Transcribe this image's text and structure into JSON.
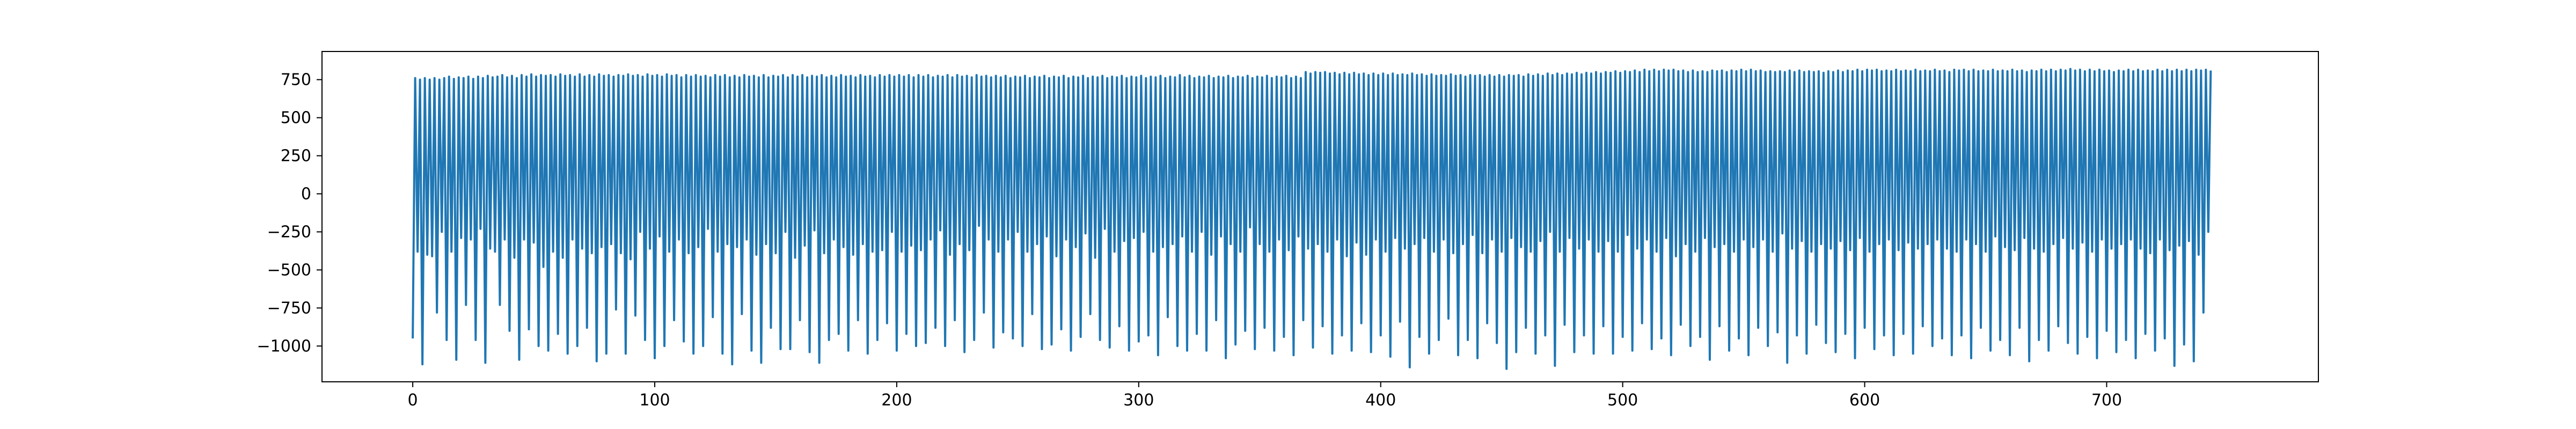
{
  "chart_data": {
    "type": "line",
    "title": "",
    "xlabel": "",
    "ylabel": "",
    "xlim": [
      -37.5,
      787.5
    ],
    "ylim": [
      -1235,
      935
    ],
    "xticks": [
      0,
      100,
      200,
      300,
      400,
      500,
      600,
      700
    ],
    "yticks": [
      -1000,
      -750,
      -500,
      -250,
      0,
      250,
      500,
      750
    ],
    "xtick_labels": [
      "0",
      "100",
      "200",
      "300",
      "400",
      "500",
      "600",
      "700"
    ],
    "ytick_labels": [
      "−1000",
      "−750",
      "−500",
      "−250",
      "0",
      "250",
      "500",
      "750"
    ],
    "grid": false,
    "legend": false,
    "series_color": "#1f77b4",
    "series": [
      {
        "x_start": 0,
        "x_step": 1,
        "values": [
          -950,
          760,
          -380,
          750,
          -1120,
          760,
          -400,
          750,
          -410,
          760,
          -780,
          750,
          -250,
          760,
          -960,
          770,
          -380,
          755,
          -1090,
          765,
          -290,
          760,
          -730,
          770,
          -300,
          755,
          -960,
          770,
          -230,
          760,
          -1110,
          775,
          -360,
          765,
          -380,
          770,
          -730,
          780,
          -300,
          765,
          -900,
          775,
          -420,
          760,
          -1090,
          780,
          -300,
          770,
          -890,
          785,
          -320,
          770,
          -1000,
          780,
          -480,
          775,
          -1030,
          780,
          -380,
          770,
          -920,
          785,
          -420,
          775,
          -1050,
          780,
          -300,
          770,
          -1000,
          785,
          -360,
          770,
          -880,
          780,
          -390,
          770,
          -1100,
          785,
          -350,
          775,
          -1050,
          780,
          -330,
          770,
          -760,
          780,
          -390,
          775,
          -1050,
          785,
          -430,
          775,
          -800,
          780,
          -250,
          770,
          -960,
          785,
          -360,
          775,
          -1080,
          780,
          -280,
          770,
          -1000,
          785,
          -380,
          775,
          -830,
          780,
          -300,
          765,
          -970,
          780,
          -390,
          770,
          -1050,
          780,
          -350,
          770,
          -1000,
          775,
          -230,
          765,
          -810,
          780,
          -380,
          770,
          -1050,
          780,
          -330,
          765,
          -1120,
          775,
          -350,
          765,
          -790,
          780,
          -300,
          770,
          -1030,
          775,
          -400,
          765,
          -1110,
          780,
          -330,
          765,
          -880,
          775,
          -390,
          770,
          -1020,
          780,
          -250,
          765,
          -1020,
          780,
          -420,
          770,
          -830,
          780,
          -340,
          765,
          -1040,
          775,
          -240,
          770,
          -1110,
          780,
          -390,
          765,
          -960,
          775,
          -300,
          765,
          -920,
          780,
          -350,
          770,
          -1030,
          775,
          -400,
          765,
          -830,
          780,
          -330,
          770,
          -1050,
          775,
          -380,
          765,
          -960,
          780,
          -370,
          770,
          -850,
          780,
          -250,
          770,
          -1030,
          780,
          -380,
          770,
          -920,
          780,
          -340,
          765,
          -1000,
          780,
          -370,
          770,
          -980,
          780,
          -300,
          765,
          -880,
          775,
          -240,
          770,
          -1000,
          780,
          -400,
          765,
          -830,
          780,
          -330,
          770,
          -1040,
          775,
          -370,
          765,
          -960,
          780,
          -210,
          770,
          -780,
          775,
          -300,
          765,
          -1010,
          775,
          -380,
          765,
          -910,
          775,
          -300,
          760,
          -950,
          770,
          -250,
          765,
          -1000,
          775,
          -380,
          760,
          -790,
          770,
          -330,
          765,
          -1020,
          775,
          -280,
          760,
          -990,
          770,
          -410,
          765,
          -890,
          775,
          -300,
          760,
          -1030,
          770,
          -350,
          765,
          -940,
          775,
          -260,
          760,
          -790,
          770,
          -420,
          765,
          -960,
          775,
          -230,
          760,
          -1010,
          770,
          -380,
          765,
          -870,
          775,
          -310,
          760,
          -1030,
          770,
          -290,
          765,
          -970,
          775,
          -250,
          760,
          -930,
          770,
          -380,
          765,
          -1060,
          775,
          -350,
          760,
          -810,
          770,
          -330,
          765,
          -1000,
          780,
          -280,
          765,
          -1030,
          775,
          -380,
          760,
          -920,
          770,
          -250,
          765,
          -1030,
          775,
          -400,
          760,
          -830,
          770,
          -280,
          765,
          -1080,
          775,
          -330,
          760,
          -990,
          770,
          -380,
          765,
          -900,
          775,
          -220,
          760,
          -1020,
          770,
          -330,
          765,
          -880,
          775,
          -380,
          760,
          -1030,
          770,
          -300,
          765,
          -940,
          775,
          -370,
          760,
          -1060,
          770,
          -280,
          760,
          -830,
          800,
          -360,
          790,
          -1010,
          800,
          -330,
          795,
          -870,
          800,
          -380,
          790,
          -1050,
          795,
          -300,
          785,
          -930,
          795,
          -410,
          785,
          -1030,
          795,
          -320,
          785,
          -850,
          790,
          -400,
          780,
          -1040,
          790,
          -300,
          780,
          -930,
          790,
          -380,
          780,
          -1070,
          790,
          -290,
          780,
          -840,
          785,
          -360,
          780,
          -1140,
          790,
          -330,
          780,
          -940,
          785,
          -290,
          775,
          -1050,
          785,
          -380,
          775,
          -960,
          780,
          -300,
          775,
          -820,
          785,
          -390,
          775,
          -1060,
          780,
          -330,
          770,
          -960,
          780,
          -270,
          775,
          -1080,
          780,
          -390,
          770,
          -850,
          780,
          -300,
          770,
          -980,
          780,
          -380,
          770,
          -1150,
          780,
          -290,
          775,
          -1040,
          780,
          -350,
          770,
          -880,
          785,
          -380,
          775,
          -1050,
          785,
          -310,
          775,
          -930,
          790,
          -250,
          780,
          -1130,
          790,
          -380,
          780,
          -860,
          790,
          -290,
          785,
          -1040,
          795,
          -360,
          785,
          -930,
          795,
          -300,
          790,
          -1050,
          800,
          -380,
          790,
          -870,
          800,
          -310,
          795,
          -1050,
          805,
          -380,
          795,
          -940,
          805,
          -270,
          800,
          -1030,
          810,
          -360,
          800,
          -850,
          815,
          -300,
          805,
          -1020,
          815,
          -380,
          805,
          -950,
          815,
          -290,
          810,
          -1060,
          815,
          -410,
          805,
          -860,
          810,
          -330,
          800,
          -1000,
          810,
          -380,
          800,
          -940,
          805,
          -290,
          800,
          -1090,
          810,
          -350,
          805,
          -870,
          810,
          -330,
          800,
          -1030,
          810,
          -380,
          805,
          -950,
          815,
          -300,
          805,
          -1060,
          815,
          -350,
          805,
          -880,
          810,
          -300,
          800,
          -1000,
          805,
          -380,
          800,
          -910,
          805,
          -260,
          800,
          -1110,
          810,
          -360,
          800,
          -930,
          810,
          -310,
          800,
          -1050,
          805,
          -380,
          800,
          -860,
          805,
          -330,
          795,
          -980,
          805,
          -360,
          800,
          -1040,
          810,
          -310,
          800,
          -920,
          810,
          -370,
          805,
          -1080,
          815,
          -290,
          805,
          -880,
          815,
          -380,
          810,
          -1020,
          815,
          -330,
          805,
          -930,
          810,
          -300,
          805,
          -1060,
          815,
          -370,
          805,
          -920,
          810,
          -320,
          805,
          -1050,
          815,
          -360,
          805,
          -870,
          810,
          -330,
          805,
          -1000,
          815,
          -300,
          805,
          -950,
          810,
          -360,
          800,
          -1060,
          815,
          -380,
          810,
          -930,
          815,
          -300,
          805,
          -1080,
          815,
          -330,
          805,
          -880,
          810,
          -380,
          805,
          -1030,
          815,
          -280,
          805,
          -960,
          810,
          -350,
          805,
          -1060,
          815,
          -370,
          805,
          -880,
          810,
          -290,
          800,
          -1100,
          810,
          -360,
          805,
          -960,
          815,
          -380,
          805,
          -1030,
          815,
          -330,
          805,
          -870,
          815,
          -290,
          810,
          -980,
          820,
          -360,
          810,
          -1050,
          815,
          -320,
          805,
          -940,
          815,
          -380,
          805,
          -1080,
          815,
          -300,
          805,
          -900,
          810,
          -360,
          800,
          -1040,
          810,
          -330,
          805,
          -960,
          815,
          -300,
          805,
          -1080,
          815,
          -360,
          805,
          -920,
          810,
          -390,
          805,
          -1030,
          815,
          -300,
          805,
          -950,
          815,
          -370,
          805,
          -1130,
          815,
          -340,
          805,
          -990,
          815,
          -310,
          805,
          -1100,
          815,
          -400,
          810,
          -780,
          815,
          -250,
          810
        ]
      }
    ]
  }
}
